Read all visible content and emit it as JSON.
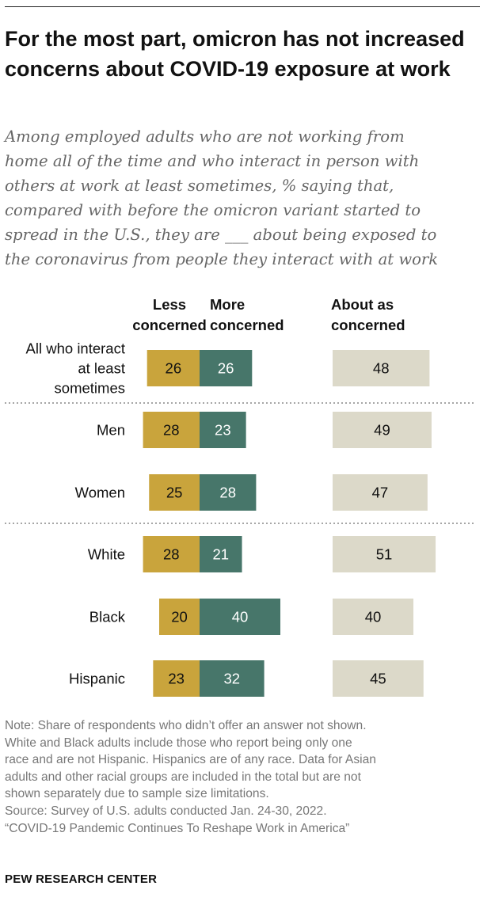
{
  "title": "For the most part, omicron has not increased concerns about COVID-19 exposure at work",
  "subtitle_lines": [
    "Among employed adults who are not working from",
    "home all of the time and who interact in person with",
    "others at work at least sometimes, % saying that,",
    "compared with before the omicron variant started to",
    "spread in the U.S., they are ___ about being exposed to",
    "the coronavirus from people they interact with at work"
  ],
  "chart_data": {
    "type": "bar",
    "orientation": "horizontal",
    "stacked_series": [
      "Less concerned",
      "More concerned"
    ],
    "series": [
      {
        "name": "Less concerned",
        "color": "#c9a43c",
        "values": [
          26,
          28,
          25,
          28,
          20,
          23
        ]
      },
      {
        "name": "More concerned",
        "color": "#47766a",
        "values": [
          26,
          23,
          28,
          21,
          40,
          32
        ]
      },
      {
        "name": "About as concerned",
        "color": "#dcd9c9",
        "values": [
          48,
          49,
          47,
          51,
          40,
          45
        ]
      }
    ],
    "categories": [
      "All who interact\nat least\nsometimes",
      "Men",
      "Women",
      "White",
      "Black",
      "Hispanic"
    ],
    "column_headers": [
      {
        "key": "less",
        "lines": [
          "Less",
          "concerned"
        ]
      },
      {
        "key": "more",
        "lines": [
          "More",
          "concerned"
        ]
      },
      {
        "key": "about",
        "lines": [
          "About as",
          "concerned"
        ]
      }
    ],
    "group_separators_after": [
      0,
      2
    ]
  },
  "notes_lines": [
    "Note: Share of respondents who didn’t offer an answer not shown.",
    "White and Black adults include those who report being only one",
    "race and are not Hispanic. Hispanics are of any race. Data for Asian",
    "adults and other racial groups are included in the total but are not",
    "shown separately due to sample size limitations.",
    "Source: Survey of U.S. adults conducted Jan. 24-30, 2022.",
    "“COVID-19 Pandemic Continues To Reshape Work in America”"
  ],
  "brand": "PEW RESEARCH CENTER"
}
